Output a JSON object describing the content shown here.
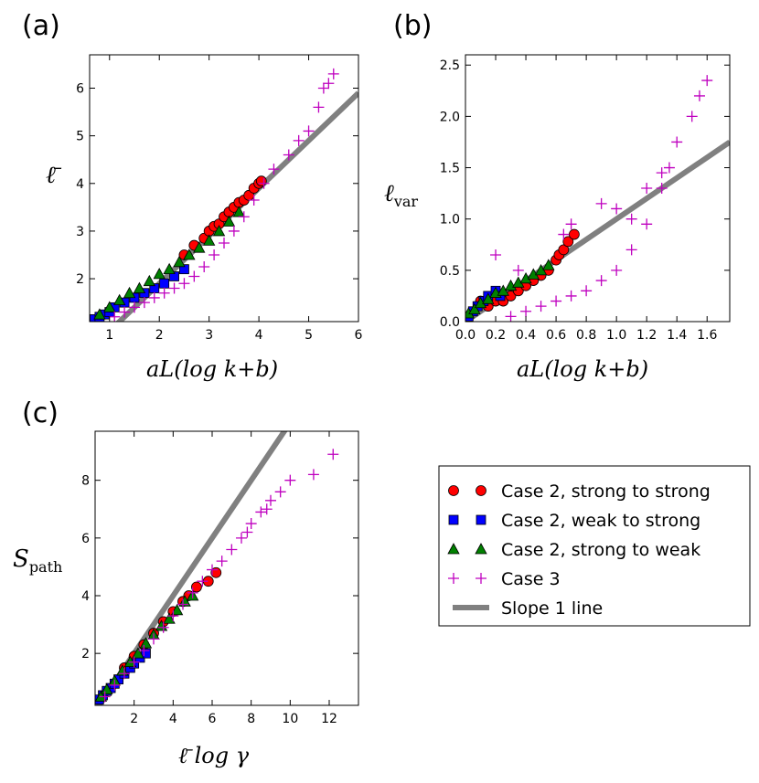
{
  "panels": [
    {
      "label": "(a)",
      "xlabel": "aL(log k+b)",
      "ylabel": "ℓ̄",
      "xlim": [
        0.6,
        6.0
      ],
      "ylim": [
        1.1,
        6.7
      ],
      "xticks": [
        1,
        2,
        3,
        4,
        5,
        6
      ],
      "yticks": [
        2,
        3,
        4,
        5,
        6
      ]
    },
    {
      "label": "(b)",
      "xlabel": "aL(log k+b)",
      "ylabel": "ℓvar",
      "xlim": [
        0.0,
        1.75
      ],
      "ylim": [
        0.0,
        2.6
      ],
      "xticks": [
        0.0,
        0.2,
        0.4,
        0.6,
        0.8,
        1.0,
        1.2,
        1.4,
        1.6
      ],
      "yticks": [
        0.0,
        0.5,
        1.0,
        1.5,
        2.0,
        2.5
      ]
    },
    {
      "label": "(c)",
      "xlabel": "ℓ̄ log γ",
      "ylabel": "Spath",
      "xlim": [
        0.0,
        13.5
      ],
      "ylim": [
        0.2,
        9.7
      ],
      "xticks": [
        2,
        4,
        6,
        8,
        10,
        12
      ],
      "yticks": [
        2,
        4,
        6,
        8
      ]
    }
  ],
  "legend": {
    "entries": [
      {
        "marker": "circle",
        "color": "#ff0000",
        "label": "Case 2, strong to strong"
      },
      {
        "marker": "square",
        "color": "#0000ff",
        "label": "Case 2, weak to strong"
      },
      {
        "marker": "triangle",
        "color": "#008000",
        "label": "Case 2, strong to weak"
      },
      {
        "marker": "plus",
        "color": "#bf00bf",
        "label": "Case 3"
      },
      {
        "marker": "line",
        "color": "#808080",
        "label": "Slope 1 line"
      }
    ]
  },
  "chart_data": [
    {
      "type": "scatter",
      "title": "(a)",
      "xlabel": "aL(log k+b)",
      "ylabel": "ℓ̄",
      "xlim": [
        0.6,
        6.0
      ],
      "ylim": [
        1.1,
        6.7
      ],
      "slope1_line": {
        "intercept": 0.1
      },
      "series": [
        {
          "name": "Case 2, strong to strong",
          "points": [
            [
              2.5,
              2.5
            ],
            [
              2.7,
              2.7
            ],
            [
              2.9,
              2.85
            ],
            [
              3.0,
              3.0
            ],
            [
              3.1,
              3.1
            ],
            [
              3.2,
              3.15
            ],
            [
              3.3,
              3.3
            ],
            [
              3.4,
              3.4
            ],
            [
              3.5,
              3.5
            ],
            [
              3.6,
              3.6
            ],
            [
              3.7,
              3.65
            ],
            [
              3.8,
              3.75
            ],
            [
              3.9,
              3.9
            ],
            [
              4.0,
              4.0
            ],
            [
              4.05,
              4.05
            ]
          ]
        },
        {
          "name": "Case 2, weak to strong",
          "points": [
            [
              0.7,
              1.15
            ],
            [
              0.8,
              1.2
            ],
            [
              0.9,
              1.25
            ],
            [
              1.0,
              1.3
            ],
            [
              1.1,
              1.4
            ],
            [
              1.3,
              1.5
            ],
            [
              1.5,
              1.6
            ],
            [
              1.7,
              1.7
            ],
            [
              1.9,
              1.8
            ],
            [
              2.1,
              1.9
            ],
            [
              2.3,
              2.05
            ],
            [
              2.5,
              2.2
            ]
          ]
        },
        {
          "name": "Case 2, strong to weak",
          "points": [
            [
              0.8,
              1.25
            ],
            [
              1.0,
              1.4
            ],
            [
              1.2,
              1.55
            ],
            [
              1.4,
              1.7
            ],
            [
              1.6,
              1.8
            ],
            [
              1.8,
              1.95
            ],
            [
              2.0,
              2.1
            ],
            [
              2.2,
              2.2
            ],
            [
              2.4,
              2.35
            ],
            [
              2.6,
              2.5
            ],
            [
              2.8,
              2.65
            ],
            [
              3.0,
              2.8
            ],
            [
              3.2,
              3.0
            ],
            [
              3.4,
              3.2
            ],
            [
              3.6,
              3.4
            ]
          ]
        },
        {
          "name": "Case 3",
          "points": [
            [
              1.1,
              1.2
            ],
            [
              1.3,
              1.3
            ],
            [
              1.5,
              1.4
            ],
            [
              1.7,
              1.5
            ],
            [
              1.9,
              1.6
            ],
            [
              2.1,
              1.7
            ],
            [
              2.3,
              1.8
            ],
            [
              2.5,
              1.9
            ],
            [
              2.7,
              2.05
            ],
            [
              2.9,
              2.25
            ],
            [
              3.1,
              2.5
            ],
            [
              3.3,
              2.75
            ],
            [
              3.5,
              3.0
            ],
            [
              3.7,
              3.3
            ],
            [
              3.9,
              3.65
            ],
            [
              4.1,
              4.0
            ],
            [
              4.3,
              4.3
            ],
            [
              4.6,
              4.6
            ],
            [
              4.8,
              4.9
            ],
            [
              5.0,
              5.1
            ],
            [
              5.2,
              5.6
            ],
            [
              5.3,
              6.0
            ],
            [
              5.4,
              6.1
            ],
            [
              5.5,
              6.3
            ]
          ]
        }
      ]
    },
    {
      "type": "scatter",
      "title": "(b)",
      "xlabel": "aL(log k+b)",
      "ylabel": "ℓvar",
      "xlim": [
        0.0,
        1.75
      ],
      "ylim": [
        0.0,
        2.6
      ],
      "slope1_line": {
        "intercept": 0.0
      },
      "series": [
        {
          "name": "Case 2, strong to strong",
          "points": [
            [
              0.1,
              0.2
            ],
            [
              0.15,
              0.15
            ],
            [
              0.2,
              0.2
            ],
            [
              0.25,
              0.2
            ],
            [
              0.3,
              0.25
            ],
            [
              0.35,
              0.3
            ],
            [
              0.4,
              0.35
            ],
            [
              0.45,
              0.4
            ],
            [
              0.5,
              0.45
            ],
            [
              0.55,
              0.5
            ],
            [
              0.6,
              0.6
            ],
            [
              0.62,
              0.65
            ],
            [
              0.65,
              0.7
            ],
            [
              0.68,
              0.78
            ],
            [
              0.72,
              0.85
            ]
          ]
        },
        {
          "name": "Case 2, weak to strong",
          "points": [
            [
              0.02,
              0.05
            ],
            [
              0.05,
              0.1
            ],
            [
              0.08,
              0.15
            ],
            [
              0.12,
              0.2
            ],
            [
              0.15,
              0.25
            ],
            [
              0.2,
              0.3
            ],
            [
              0.23,
              0.25
            ]
          ]
        },
        {
          "name": "Case 2, strong to weak",
          "points": [
            [
              0.02,
              0.08
            ],
            [
              0.06,
              0.12
            ],
            [
              0.1,
              0.18
            ],
            [
              0.15,
              0.22
            ],
            [
              0.2,
              0.28
            ],
            [
              0.25,
              0.3
            ],
            [
              0.3,
              0.35
            ],
            [
              0.35,
              0.38
            ],
            [
              0.4,
              0.42
            ],
            [
              0.45,
              0.46
            ],
            [
              0.5,
              0.5
            ],
            [
              0.55,
              0.55
            ]
          ]
        },
        {
          "name": "Case 3",
          "points": [
            [
              0.3,
              0.05
            ],
            [
              0.4,
              0.1
            ],
            [
              0.5,
              0.15
            ],
            [
              0.6,
              0.2
            ],
            [
              0.7,
              0.25
            ],
            [
              0.8,
              0.3
            ],
            [
              0.9,
              0.4
            ],
            [
              1.0,
              0.5
            ],
            [
              1.1,
              0.7
            ],
            [
              1.2,
              0.95
            ],
            [
              1.3,
              1.3
            ],
            [
              1.35,
              1.5
            ],
            [
              1.4,
              1.75
            ],
            [
              1.5,
              2.0
            ],
            [
              1.55,
              2.2
            ],
            [
              1.6,
              2.35
            ],
            [
              0.2,
              0.65
            ],
            [
              0.35,
              0.5
            ],
            [
              0.65,
              0.85
            ],
            [
              0.7,
              0.95
            ],
            [
              0.9,
              1.15
            ],
            [
              1.0,
              1.1
            ],
            [
              1.1,
              1.0
            ],
            [
              1.2,
              1.3
            ],
            [
              1.3,
              1.45
            ]
          ]
        }
      ]
    },
    {
      "type": "scatter",
      "title": "(c)",
      "xlabel": "ℓ̄ log γ",
      "ylabel": "Spath",
      "xlim": [
        0.0,
        13.5
      ],
      "ylim": [
        0.2,
        9.7
      ],
      "slope1_line": {
        "intercept": 0.0
      },
      "series": [
        {
          "name": "Case 2, strong to strong",
          "points": [
            [
              1.5,
              1.5
            ],
            [
              2.0,
              1.9
            ],
            [
              2.5,
              2.3
            ],
            [
              3.0,
              2.7
            ],
            [
              3.5,
              3.1
            ],
            [
              4.0,
              3.45
            ],
            [
              4.5,
              3.8
            ],
            [
              4.8,
              4.0
            ],
            [
              5.2,
              4.3
            ],
            [
              5.8,
              4.5
            ],
            [
              6.2,
              4.8
            ]
          ]
        },
        {
          "name": "Case 2, weak to strong",
          "points": [
            [
              0.2,
              0.4
            ],
            [
              0.4,
              0.55
            ],
            [
              0.6,
              0.7
            ],
            [
              0.8,
              0.8
            ],
            [
              1.0,
              0.95
            ],
            [
              1.2,
              1.1
            ],
            [
              1.5,
              1.3
            ],
            [
              1.8,
              1.5
            ],
            [
              2.0,
              1.65
            ],
            [
              2.3,
              1.85
            ],
            [
              2.6,
              2.0
            ]
          ]
        },
        {
          "name": "Case 2, strong to weak",
          "points": [
            [
              0.3,
              0.5
            ],
            [
              0.6,
              0.75
            ],
            [
              1.0,
              1.05
            ],
            [
              1.4,
              1.4
            ],
            [
              1.8,
              1.7
            ],
            [
              2.2,
              2.0
            ],
            [
              2.6,
              2.35
            ],
            [
              3.0,
              2.65
            ],
            [
              3.4,
              2.95
            ],
            [
              3.8,
              3.2
            ],
            [
              4.2,
              3.5
            ],
            [
              4.6,
              3.8
            ],
            [
              5.0,
              4.0
            ]
          ]
        },
        {
          "name": "Case 3",
          "points": [
            [
              0.5,
              0.5
            ],
            [
              1.0,
              0.9
            ],
            [
              1.5,
              1.3
            ],
            [
              2.0,
              1.7
            ],
            [
              2.5,
              2.1
            ],
            [
              3.0,
              2.5
            ],
            [
              3.5,
              2.9
            ],
            [
              4.0,
              3.3
            ],
            [
              4.5,
              3.7
            ],
            [
              5.0,
              4.1
            ],
            [
              5.5,
              4.5
            ],
            [
              6.0,
              4.9
            ],
            [
              6.5,
              5.2
            ],
            [
              7.0,
              5.6
            ],
            [
              7.5,
              6.0
            ],
            [
              8.0,
              6.5
            ],
            [
              8.5,
              6.9
            ],
            [
              9.0,
              7.3
            ],
            [
              9.5,
              7.6
            ],
            [
              10.0,
              8.0
            ],
            [
              11.2,
              8.2
            ],
            [
              12.2,
              8.9
            ],
            [
              8.8,
              7.0
            ],
            [
              7.8,
              6.2
            ]
          ]
        }
      ]
    }
  ]
}
